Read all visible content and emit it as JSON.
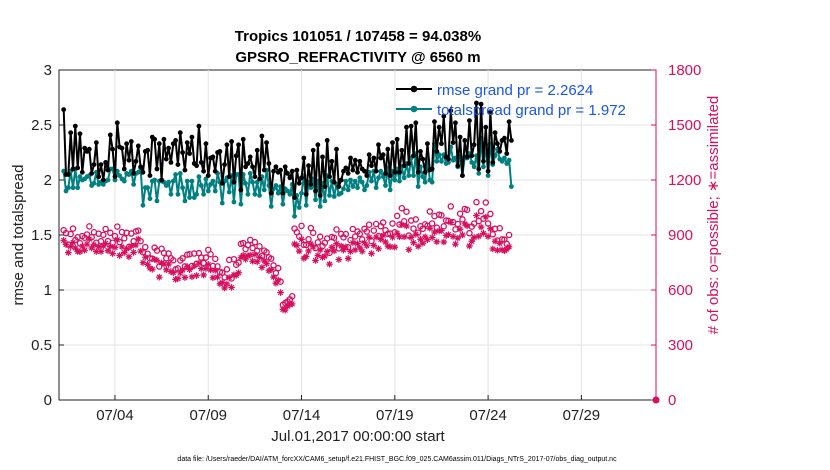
{
  "chart_data": {
    "type": "line",
    "title_line1": "Tropics 101051 / 107458 = 94.038%",
    "title_line2": "GPSRO_REFRACTIVITY @ 6560 m",
    "xlabel": "Jul.01,2017 00:00:00 start",
    "ylabel_left": "rmse and totalspread",
    "ylabel_right": "# of obs: o=possible; ∗=assimilated",
    "footnote": "data file: /Users/raeder/DAI/ATM_forcXX/CAM6_setup/f.e21.FHIST_BGC.f09_025.CAM6assim.011/Diags_NTrS_2017-07/obs_diag_output.nc",
    "x_ticks": [
      {
        "label": "07/04",
        "day": 4
      },
      {
        "label": "07/09",
        "day": 9
      },
      {
        "label": "07/14",
        "day": 14
      },
      {
        "label": "07/19",
        "day": 19
      },
      {
        "label": "07/24",
        "day": 24
      },
      {
        "label": "07/29",
        "day": 29
      }
    ],
    "xlim": [
      1.0,
      33.0
    ],
    "ylim_left": [
      0,
      3
    ],
    "ylim_right": [
      0,
      1800
    ],
    "y_ticks_left": [
      "0",
      "0.5",
      "1",
      "1.5",
      "2",
      "2.5",
      "3"
    ],
    "y_ticks_right": [
      "0",
      "300",
      "600",
      "900",
      "1200",
      "1500",
      "1800"
    ],
    "legend": [
      {
        "label": "rmse grand pr = 2.2624",
        "color": "#000000"
      },
      {
        "label": "totalspread grand pr = 1.972",
        "color": "#008080"
      }
    ],
    "colors": {
      "rmse": "#000000",
      "spread": "#008080",
      "obs": "#d6105e"
    },
    "x_start": 1.25,
    "x_step": 0.125,
    "series": [
      {
        "name": "rmse",
        "axis": "left",
        "values": [
          2.64,
          2.05,
          2.05,
          2.43,
          2.1,
          2.49,
          2.11,
          2.42,
          2.07,
          2.29,
          2.26,
          2.28,
          2.06,
          2.14,
          2.34,
          2.03,
          2.14,
          2.0,
          2.16,
          2.09,
          2.41,
          2.28,
          2.03,
          2.52,
          2.3,
          2.29,
          2.1,
          2.33,
          2.18,
          2.35,
          2.06,
          2.17,
          2.31,
          2.12,
          2.07,
          2.26,
          2.27,
          2.04,
          2.39,
          2.37,
          2.1,
          2.33,
          2.0,
          2.37,
          2.19,
          2.29,
          2.16,
          2.33,
          2.36,
          2.14,
          2.43,
          2.25,
          2.09,
          2.34,
          2.24,
          2.39,
          2.15,
          2.13,
          2.49,
          2.16,
          2.08,
          2.33,
          2.04,
          2.2,
          2.21,
          2.08,
          2.25,
          2.26,
          1.97,
          2.14,
          2.32,
          2.03,
          2.35,
          1.98,
          2.22,
          2.32,
          1.91,
          2.37,
          2.12,
          2.15,
          2.21,
          2.12,
          2.03,
          2.27,
          2.01,
          2.4,
          2.09,
          2.34,
          2.15,
          1.88,
          2.08,
          2.12,
          2.07,
          2.09,
          1.88,
          2.12,
          2.06,
          2.02,
          2.08,
          1.84,
          2.09,
          1.97,
          2.02,
          2.2,
          1.87,
          2.13,
          1.96,
          2.27,
          1.9,
          2.32,
          1.86,
          2.21,
          1.94,
          2.36,
          2.03,
          2.17,
          1.98,
          2.28,
          1.94,
          2.0,
          2.08,
          2.11,
          2.06,
          2.2,
          2.09,
          2.18,
          2.07,
          2.17,
          2.1,
          2.08,
          2.04,
          2.23,
          2.13,
          2.2,
          2.08,
          2.32,
          2.2,
          2.23,
          2.06,
          2.28,
          2.04,
          2.34,
          2.07,
          2.37,
          2.07,
          2.27,
          2.13,
          2.48,
          2.15,
          2.49,
          2.22,
          2.52,
          2.07,
          2.26,
          2.19,
          2.07,
          2.33,
          2.09,
          2.1,
          2.53,
          2.26,
          2.48,
          2.33,
          2.58,
          2.21,
          2.19,
          2.63,
          2.34,
          2.52,
          2.13,
          2.39,
          2.04,
          2.36,
          2.21,
          2.54,
          2.22,
          2.32,
          2.7,
          2.1,
          2.69,
          2.17,
          2.48,
          2.08,
          2.62,
          2.16,
          2.43,
          2.33,
          2.26,
          2.36,
          2.38,
          2.24,
          2.53,
          2.36
        ]
      },
      {
        "name": "totalspread",
        "axis": "left",
        "values": [
          2.08,
          1.9,
          1.93,
          2.08,
          1.93,
          2.1,
          1.93,
          2.03,
          2.0,
          2.01,
          2.03,
          2.04,
          1.95,
          1.97,
          2.07,
          1.96,
          1.98,
          1.96,
          1.99,
          2.0,
          2.1,
          2.1,
          2.0,
          2.08,
          2.04,
          2.01,
          1.99,
          2.06,
          2.05,
          2.08,
          1.96,
          2.06,
          2.07,
          2.11,
          1.77,
          1.93,
          1.93,
          1.83,
          1.99,
          2.0,
          1.81,
          1.99,
          1.99,
          1.98,
          1.95,
          1.98,
          1.87,
          1.99,
          2.05,
          1.87,
          2.06,
          1.93,
          1.81,
          1.99,
          1.84,
          1.99,
          1.84,
          1.87,
          2.03,
          1.95,
          1.87,
          2.01,
          1.9,
          1.96,
          1.99,
          1.9,
          2.06,
          1.98,
          1.79,
          1.99,
          2.02,
          1.89,
          2.04,
          1.8,
          2.05,
          2.05,
          1.78,
          2.05,
          1.97,
          1.87,
          2.06,
          1.98,
          1.87,
          1.98,
          1.86,
          2.03,
          1.91,
          2.09,
          1.95,
          1.76,
          1.92,
          1.95,
          1.88,
          1.94,
          1.78,
          1.92,
          1.9,
          1.87,
          1.96,
          1.67,
          1.86,
          1.75,
          1.88,
          2.04,
          1.77,
          1.98,
          1.93,
          2.01,
          1.82,
          1.99,
          1.76,
          1.97,
          1.81,
          2.04,
          1.86,
          1.99,
          1.85,
          1.96,
          1.87,
          1.88,
          1.92,
          1.99,
          1.91,
          2.0,
          1.94,
          1.99,
          1.93,
          2.02,
          1.98,
          1.91,
          1.95,
          2.07,
          1.99,
          2.08,
          1.93,
          2.02,
          2.08,
          2.03,
          1.95,
          2.11,
          1.91,
          2.08,
          2.0,
          2.1,
          1.99,
          2.12,
          2.02,
          2.15,
          2.04,
          2.2,
          2.04,
          2.24,
          1.94,
          2.12,
          2.03,
          1.98,
          2.19,
          2.0,
          1.98,
          2.33,
          2.17,
          2.23,
          2.17,
          2.23,
          2.15,
          2.16,
          2.3,
          2.18,
          2.2,
          2.12,
          2.21,
          2.04,
          2.21,
          2.2,
          2.24,
          2.16,
          2.12,
          2.22,
          2.06,
          2.38,
          2.12,
          2.32,
          2.04,
          2.33,
          2.14,
          2.22,
          2.28,
          2.19,
          2.17,
          2.2,
          2.15,
          2.18,
          1.94
        ]
      },
      {
        "name": "obs possible",
        "axis": "right",
        "marker": "o",
        "values": [
          926,
          910,
          848,
          905,
          935,
          873,
          888,
          855,
          894,
          885,
          903,
          947,
          888,
          915,
          858,
          907,
          866,
          901,
          933,
          867,
          912,
          858,
          894,
          946,
          861,
          916,
          882,
          912,
          835,
          908,
          866,
          920,
          924,
          866,
          806,
          834,
          798,
          773,
          771,
          831,
          815,
          728,
          825,
          802,
          773,
          799,
          773,
          762,
          713,
          718,
          761,
          773,
          729,
          793,
          795,
          731,
          799,
          743,
          801,
          777,
          747,
          777,
          819,
          795,
          731,
          770,
          729,
          699,
          695,
          669,
          713,
          764,
          663,
          768,
          738,
          749,
          852,
          856,
          823,
          845,
          873,
          829,
          861,
          814,
          838,
          785,
          815,
          806,
          778,
          771,
          734,
          692,
          719,
          646,
          519,
          529,
          537,
          549,
          566,
          935,
          915,
          892,
          950,
          846,
          846,
          877,
          938,
          912,
          829,
          860,
          891,
          840,
          858,
          881,
          803,
          889,
          885,
          930,
          827,
          906,
          887,
          905,
          833,
          872,
          933,
          892,
          919,
          906,
          876,
          934,
          919,
          956,
          867,
          924,
          960,
          894,
          948,
          968,
          926,
          906,
          908,
          963,
          915,
          1004,
          957,
          1046,
          975,
          1027,
          897,
          979,
          935,
          985,
          913,
          948,
          934,
          958,
          950,
          1028,
          963,
          1003,
          940,
          1011,
          1007,
          947,
          979,
          977,
          1056,
          970,
          931,
          960,
          1016,
          985,
          1042,
          1037,
          910,
          946,
          962,
          1079,
          976,
          1030,
          989,
          1077,
          963,
          1015,
          904,
          934,
          870,
          937,
          876,
          875,
          852,
          900
        ]
      },
      {
        "name": "obs assimilated",
        "axis": "right",
        "marker": "*",
        "values": [
          871,
          848,
          804,
          837,
          859,
          829,
          810,
          809,
          839,
          817,
          850,
          878,
          829,
          847,
          810,
          836,
          810,
          840,
          854,
          814,
          837,
          799,
          832,
          874,
          788,
          835,
          804,
          825,
          781,
          840,
          805,
          845,
          878,
          812,
          749,
          779,
          740,
          719,
          713,
          767,
          762,
          670,
          748,
          741,
          710,
          741,
          701,
          694,
          658,
          662,
          693,
          709,
          668,
          727,
          711,
          672,
          731,
          679,
          747,
          717,
          682,
          717,
          740,
          709,
          667,
          707,
          670,
          634,
          640,
          611,
          633,
          668,
          614,
          683,
          680,
          694,
          777,
          789,
          768,
          786,
          791,
          757,
          794,
          754,
          778,
          723,
          759,
          744,
          705,
          712,
          671,
          637,
          654,
          586,
          494,
          490,
          512,
          521,
          524,
          851,
          843,
          812,
          876,
          773,
          783,
          813,
          852,
          835,
          761,
          788,
          819,
          778,
          785,
          810,
          741,
          833,
          813,
          853,
          766,
          840,
          818,
          835,
          772,
          810,
          858,
          819,
          853,
          830,
          811,
          858,
          841,
          887,
          799,
          843,
          888,
          825,
          876,
          898,
          862,
          839,
          836,
          888,
          834,
          910,
          890,
          956,
          890,
          949,
          820,
          887,
          858,
          904,
          838,
          877,
          855,
          890,
          874,
          937,
          886,
          916,
          863,
          922,
          924,
          862,
          897,
          902,
          969,
          892,
          850,
          883,
          931,
          900,
          961,
          950,
          840,
          866,
          887,
          1006,
          893,
          943,
          909,
          998,
          892,
          934,
          824,
          866,
          817,
          855,
          819,
          814,
          823,
          836
        ]
      }
    ]
  }
}
